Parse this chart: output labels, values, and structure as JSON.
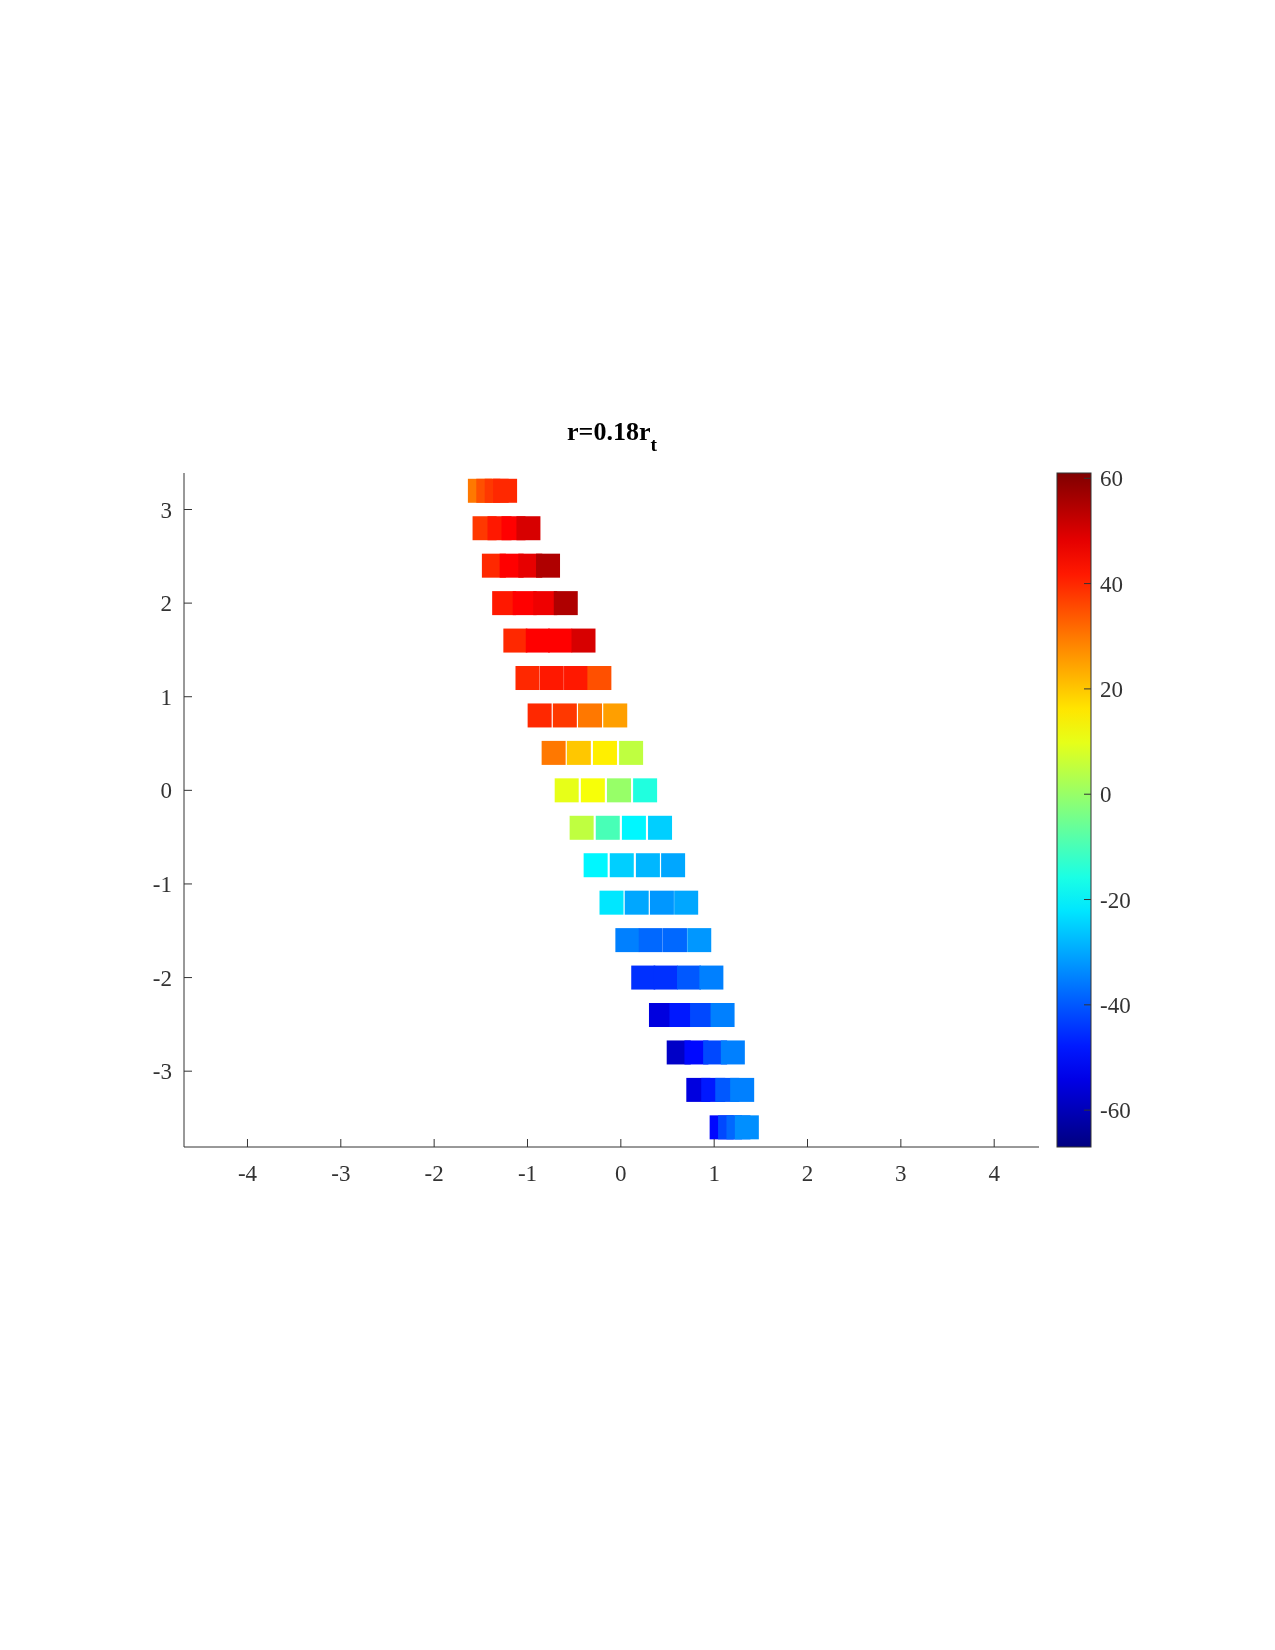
{
  "chart_data": {
    "type": "scatter",
    "title": "r=0.18r$_{t}$",
    "x": [
      -1.51,
      -1.42,
      -1.33,
      -1.24,
      -1.46,
      -1.3,
      -1.15,
      -0.99,
      -1.36,
      -1.17,
      -0.97,
      -0.78,
      -1.25,
      -1.03,
      -0.81,
      -0.59,
      -1.13,
      -0.89,
      -0.65,
      -0.4,
      -1.0,
      -0.74,
      -0.48,
      -0.23,
      -0.87,
      -0.6,
      -0.33,
      -0.06,
      -0.72,
      -0.45,
      -0.17,
      0.11,
      -0.58,
      -0.3,
      -0.02,
      0.26,
      -0.42,
      -0.14,
      0.14,
      0.42,
      -0.27,
      0.01,
      0.29,
      0.56,
      -0.1,
      0.17,
      0.44,
      0.7,
      0.07,
      0.32,
      0.58,
      0.84,
      0.24,
      0.48,
      0.73,
      0.97,
      0.43,
      0.65,
      0.87,
      1.09,
      0.62,
      0.81,
      1.01,
      1.2,
      0.83,
      0.99,
      1.14,
      1.3,
      1.08,
      1.17,
      1.26,
      1.35
    ],
    "values": [
      3.2,
      3.2,
      3.2,
      3.2,
      2.8,
      2.8,
      2.8,
      2.8,
      2.4,
      2.4,
      2.4,
      2.4,
      2.0,
      2.0,
      2.0,
      2.0,
      1.6,
      1.6,
      1.6,
      1.6,
      1.2,
      1.2,
      1.2,
      1.2,
      0.8,
      0.8,
      0.8,
      0.8,
      0.4,
      0.4,
      0.4,
      0.4,
      0.0,
      0.0,
      0.0,
      0.0,
      -0.4,
      -0.4,
      -0.4,
      -0.4,
      -0.8,
      -0.8,
      -0.8,
      -0.8,
      -1.2,
      -1.2,
      -1.2,
      -1.2,
      -1.6,
      -1.6,
      -1.6,
      -1.6,
      -2.0,
      -2.0,
      -2.0,
      -2.0,
      -2.4,
      -2.4,
      -2.4,
      -2.4,
      -2.8,
      -2.8,
      -2.8,
      -2.8,
      -3.2,
      -3.2,
      -3.2,
      -3.2,
      -3.6,
      -3.6,
      -3.6,
      -3.6
    ],
    "cvalues": [
      30,
      35,
      38,
      40,
      38,
      42,
      45,
      50,
      40,
      45,
      48,
      55,
      42,
      45,
      47,
      55,
      40,
      45,
      45,
      50,
      40,
      42,
      42,
      35,
      40,
      38,
      30,
      25,
      30,
      20,
      15,
      5,
      10,
      12,
      0,
      -15,
      5,
      -10,
      -20,
      -25,
      -20,
      -25,
      -28,
      -30,
      -22,
      -30,
      -32,
      -30,
      -35,
      -38,
      -38,
      -32,
      -45,
      -45,
      -40,
      -35,
      -55,
      -48,
      -42,
      -35,
      -58,
      -50,
      -42,
      -35,
      -55,
      -48,
      -40,
      -35,
      -50,
      -42,
      -38,
      -33
    ],
    "xlim": [
      -4.68,
      4.48
    ],
    "ylim": [
      -3.81,
      3.39
    ],
    "xticks": [
      -4,
      -3,
      -2,
      -1,
      0,
      1,
      2,
      3,
      4
    ],
    "yticks": [
      -3,
      -2,
      -1,
      0,
      1,
      2,
      3
    ],
    "clim": [
      -67,
      61
    ],
    "cticks": [
      -60,
      -40,
      -20,
      0,
      20,
      40,
      60
    ],
    "marker": "square",
    "grid": false
  }
}
